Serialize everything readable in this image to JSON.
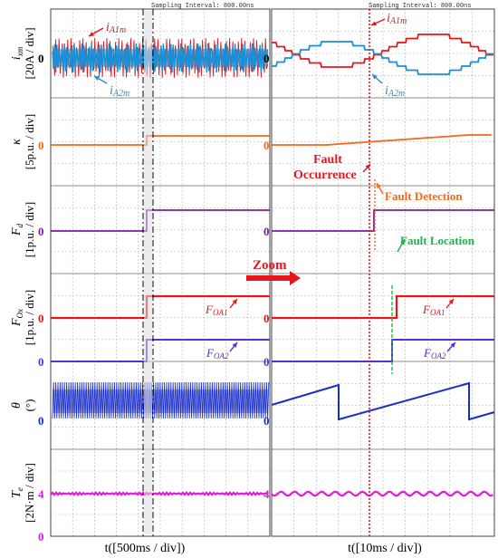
{
  "header": {
    "sampling_left": "Sampling Interval:  800.00ns",
    "sampling_right": "Sampling Interval:  800.00ns"
  },
  "colors": {
    "red": "#e8161b",
    "blue": "#1a8fd6",
    "orange": "#f26a1b",
    "purple": "#7a1fa0",
    "violet": "#5a2fd0",
    "navy": "#1a2ec8",
    "magenta": "#e31ad8",
    "green": "#1fb24a",
    "grid": "#9a9a9a"
  },
  "panels": [
    {
      "id": "current",
      "ylabel_main": "i",
      "ylabel_sub": "xm",
      "ylabel_unit": "[20A / div]",
      "zero_label": "0"
    },
    {
      "id": "kappa",
      "ylabel_main": "κ",
      "ylabel_sub": "",
      "ylabel_unit": "[5p.u. / div]",
      "zero_label": "0"
    },
    {
      "id": "fd",
      "ylabel_main": "F",
      "ylabel_sub": "d",
      "ylabel_unit": "[1p.u. / div]",
      "zero_label": "0"
    },
    {
      "id": "fox",
      "ylabel_main": "F",
      "ylabel_sub": "Ox",
      "ylabel_unit": "[1p.u. / div]",
      "zero_label": "0"
    },
    {
      "id": "theta",
      "ylabel_main": "θ",
      "ylabel_sub": "",
      "ylabel_unit": "(°)",
      "zero_label": "0"
    },
    {
      "id": "torque",
      "ylabel_main": "T",
      "ylabel_sub": "e",
      "ylabel_unit": "[2N·m / div]",
      "zero_label": "4"
    }
  ],
  "signal_labels": {
    "ia1": "i",
    "ia1_sub": "A1m",
    "ia2": "i",
    "ia2_sub": "A2m",
    "foa1": "F",
    "foa1_sub": "OA1",
    "foa2": "F",
    "foa2_sub": "OA2"
  },
  "annotations": {
    "fault_occurrence_1": "Fault",
    "fault_occurrence_2": "Occurrence",
    "fault_detection": "Fault Detection",
    "fault_location": "Fault Location",
    "zoom": "Zoom"
  },
  "x_axis": {
    "left_label": "t([500ms / div])",
    "right_label": "t([10ms / div])"
  },
  "chart_data": [
    {
      "type": "line",
      "name": "left-overview",
      "x_unit": "ms",
      "x_div": 500,
      "divisions": 10,
      "event_x_div": 4.9,
      "traces": [
        {
          "panel": "current",
          "label": "iA1m",
          "shape": "dense oscillation",
          "amplitude_div": 0.7
        },
        {
          "panel": "current",
          "label": "iA2m",
          "shape": "dense oscillation",
          "amplitude_div": 0.5
        },
        {
          "panel": "kappa",
          "before": 0,
          "after": 0.1,
          "unit": "div"
        },
        {
          "panel": "fd",
          "before": 0,
          "after": 1,
          "unit": "p.u."
        },
        {
          "panel": "fox",
          "label": "FOA1",
          "before": 0,
          "after": 1,
          "unit": "p.u."
        },
        {
          "panel": "fox",
          "label": "FOA2",
          "before": 0,
          "after": 1,
          "unit": "p.u."
        },
        {
          "panel": "theta",
          "shape": "dense sawtooth"
        },
        {
          "panel": "torque",
          "value": 4,
          "unit": "N·m"
        }
      ]
    },
    {
      "type": "line",
      "name": "right-zoom",
      "x_unit": "ms",
      "x_div": 10,
      "divisions": 10,
      "fault_occurrence_x_div": 4.35,
      "fault_detection_x_div": 4.45,
      "fault_location_x_div": 5.0,
      "traces": [
        {
          "panel": "current",
          "label": "iA1m",
          "shape": "stepped sinusoid"
        },
        {
          "panel": "current",
          "label": "iA2m",
          "shape": "stepped sinusoid (inverted)"
        },
        {
          "panel": "kappa",
          "before": 0,
          "after": 0.2,
          "unit": "div"
        },
        {
          "panel": "fd",
          "before": 0,
          "after": 1,
          "unit": "p.u."
        },
        {
          "panel": "fox",
          "label": "FOA1",
          "before": 0,
          "after": 1,
          "unit": "p.u."
        },
        {
          "panel": "fox",
          "label": "FOA2",
          "before": 0,
          "after": 1,
          "unit": "p.u."
        },
        {
          "panel": "theta",
          "shape": "sawtooth",
          "periods": 2
        },
        {
          "panel": "torque",
          "value": 4,
          "unit": "N·m",
          "ripple": "small"
        }
      ]
    }
  ]
}
